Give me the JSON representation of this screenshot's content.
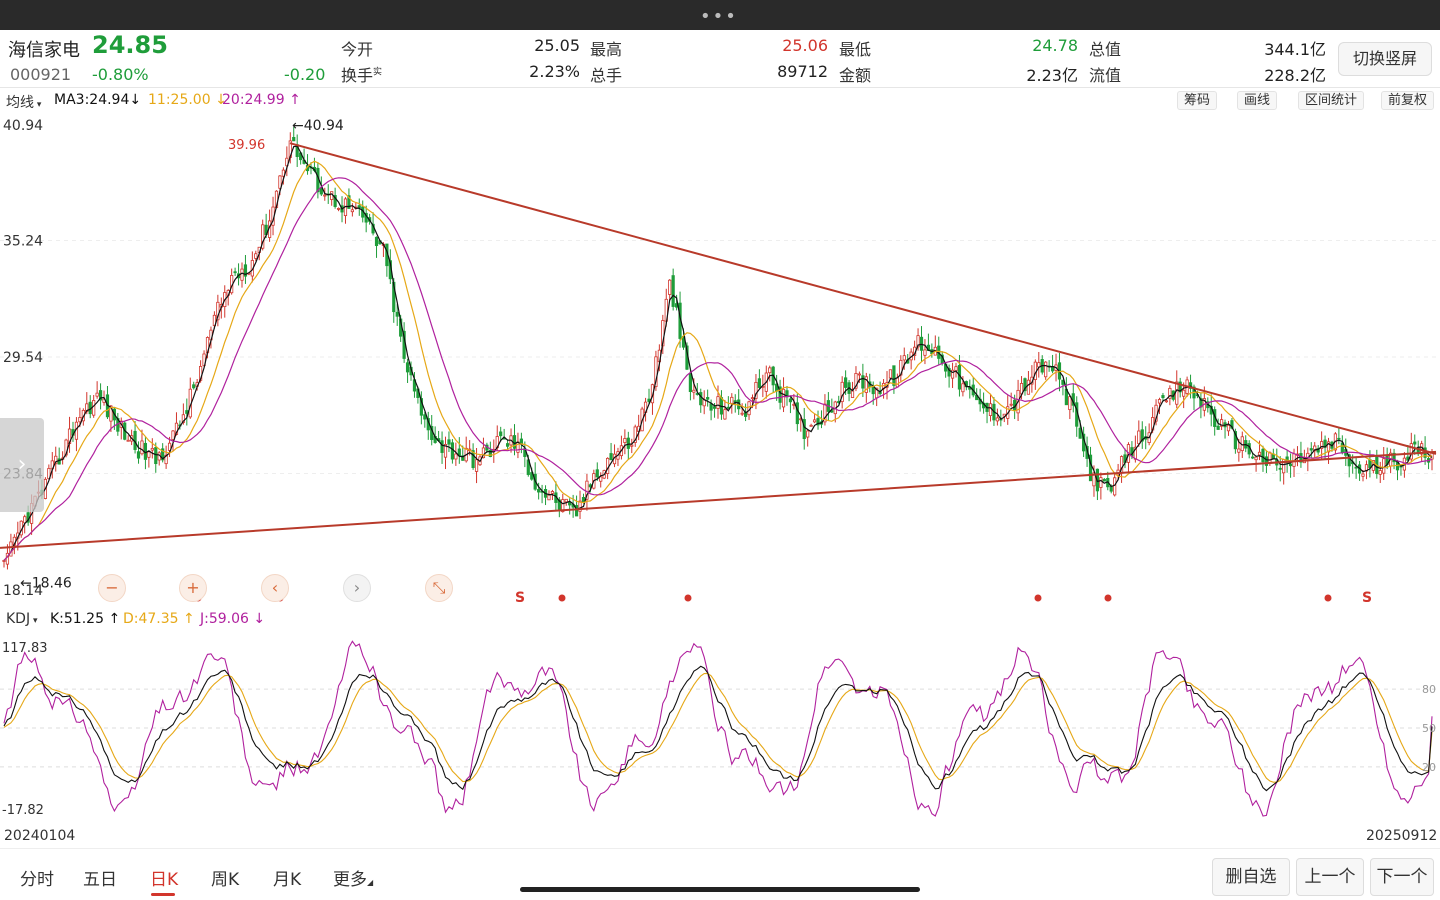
{
  "quote": {
    "name": "海信家电",
    "price": "24.85",
    "code": "000921",
    "change_pct": "-0.80%",
    "change": "-0.20",
    "open_label": "今开",
    "open": "25.05",
    "high_label": "最高",
    "high": "25.06",
    "low_label": "最低",
    "low": "24.78",
    "mcap_label": "总值",
    "mcap": "344.1亿",
    "turnover_label": "换手",
    "turnover_sup": "实",
    "turnover": "2.23%",
    "volume_label": "总手",
    "volume": "89712",
    "amount_label": "金额",
    "amount": "2.23亿",
    "float_label": "流值",
    "float_cap": "228.2亿",
    "switch_label": "切换竖屏"
  },
  "ma_bar": {
    "selector": "均线",
    "ma3": "MA3:24.94",
    "ma3_arrow": "↓",
    "ma_b": "11:25.00",
    "ma_b_arrow": "↓",
    "ma_c": "20:24.99",
    "ma_c_arrow": "↑",
    "tools": [
      "筹码",
      "画线",
      "区间统计",
      "前复权"
    ]
  },
  "price_axis": [
    "40.94",
    "35.24",
    "29.54",
    "23.84",
    "18.14"
  ],
  "annotations": {
    "max_label": "40.94",
    "min_label": "18.46",
    "peak_label": "39.96",
    "sell_mark": "S"
  },
  "kdj_bar": {
    "selector": "KDJ",
    "k": "K:51.25",
    "k_arrow": "↑",
    "d": "D:47.35",
    "d_arrow": "↑",
    "j": "J:59.06",
    "j_arrow": "↓"
  },
  "kdj_axis": {
    "max": "117.83",
    "min": "-17.82",
    "l80": "80",
    "l50": "50",
    "l20": "20"
  },
  "dates": {
    "start": "20240104",
    "end": "20250912"
  },
  "tabs": [
    "分时",
    "五日",
    "日K",
    "周K",
    "月K",
    "更多"
  ],
  "active_tab": "日K",
  "buttons": {
    "remove": "删自选",
    "prev": "上一个",
    "next": "下一个"
  },
  "colors": {
    "up": "#d2352c",
    "down": "#1f9d3a",
    "ma3": "#111111",
    "ma11": "#e6a817",
    "ma20": "#b0219e",
    "trend": "#b83a2a"
  },
  "chart_data": [
    {
      "type": "candlestick",
      "title": "",
      "x_range": [
        "20240104",
        "20250912"
      ],
      "ylim": [
        18.14,
        40.94
      ],
      "close_path_approx": [
        19.2,
        21.5,
        23.0,
        24.8,
        26.8,
        27.6,
        26.2,
        25.1,
        24.5,
        25.8,
        28.0,
        31.2,
        33.5,
        34.2,
        36.5,
        40.2,
        38.6,
        37.5,
        36.9,
        36.2,
        34.5,
        29.5,
        26.5,
        25.2,
        24.8,
        24.5,
        25.5,
        25.3,
        23.2,
        22.5,
        21.8,
        23.8,
        24.8,
        25.5,
        28.0,
        33.2,
        28.0,
        27.1,
        27.2,
        27.0,
        28.8,
        27.5,
        26.0,
        26.8,
        27.8,
        28.5,
        28.0,
        28.8,
        30.3,
        29.8,
        28.6,
        27.3,
        26.8,
        27.2,
        28.8,
        29.2,
        27.2,
        24.0,
        22.8,
        24.8,
        26.0,
        27.4,
        28.2,
        27.3,
        26.0,
        25.3,
        24.6,
        24.2,
        24.6,
        25.0,
        25.4,
        24.0,
        24.1,
        24.4,
        25.0,
        24.85
      ],
      "series": [
        {
          "name": "MA3",
          "last": 24.94
        },
        {
          "name": "11",
          "last": 25.0
        },
        {
          "name": "20",
          "last": 24.99
        }
      ],
      "trendlines": [
        {
          "from": [
            "2024-05",
            40.0
          ],
          "to": [
            "2025-09",
            24.8
          ]
        },
        {
          "from": [
            "2024-01",
            20.2
          ],
          "to": [
            "2025-09",
            24.9
          ]
        }
      ],
      "extremes": {
        "high": 40.94,
        "low": 18.46
      }
    },
    {
      "type": "line",
      "title": "",
      "ylim": [
        -17.82,
        117.83
      ],
      "series": [
        {
          "name": "K",
          "last": 51.25
        },
        {
          "name": "D",
          "last": 47.35
        },
        {
          "name": "J",
          "last": 59.06
        }
      ],
      "reference_lines": [
        80,
        50,
        20
      ]
    }
  ]
}
